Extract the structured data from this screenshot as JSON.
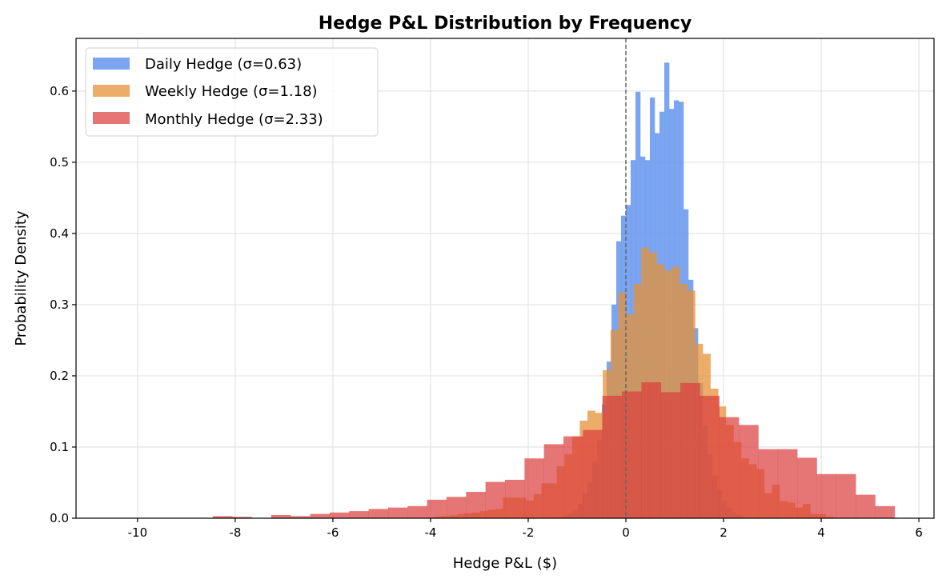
{
  "chart_data": {
    "type": "histogram",
    "title": "Hedge P&L Distribution by Frequency",
    "xlabel": "Hedge P&L ($)",
    "ylabel": "Probability Density",
    "xlim": [
      -11.26,
      6.31
    ],
    "ylim": [
      0,
      0.674
    ],
    "xticks": [
      -10,
      -8,
      -6,
      -4,
      -2,
      0,
      2,
      4,
      6
    ],
    "xtick_labels": [
      "-10",
      "-8",
      "-6",
      "-4",
      "-2",
      "0",
      "2",
      "4",
      "6"
    ],
    "yticks": [
      0,
      0.1,
      0.2,
      0.3,
      0.4,
      0.5,
      0.6
    ],
    "ytick_labels": [
      "0.0",
      "0.1",
      "0.2",
      "0.3",
      "0.4",
      "0.5",
      "0.6"
    ],
    "grid": true,
    "legend_position": "top-left",
    "reference_line": {
      "x": 0,
      "style": "dashed",
      "color": "#666666"
    },
    "series": [
      {
        "name": "Daily Hedge (σ=0.63)",
        "color": "#6495ED",
        "alpha": 0.85,
        "bin_start": -1.378,
        "bin_width": 0.0984,
        "values": [
          0.002,
          0.004,
          0.007,
          0.012,
          0.02,
          0.035,
          0.05,
          0.08,
          0.11,
          0.16,
          0.22,
          0.3,
          0.389,
          0.425,
          0.44,
          0.503,
          0.599,
          0.508,
          0.503,
          0.591,
          0.541,
          0.571,
          0.64,
          0.575,
          0.587,
          0.585,
          0.434,
          0.335,
          0.267,
          0.19,
          0.13,
          0.09,
          0.06,
          0.04,
          0.025,
          0.015,
          0.008,
          0.004
        ]
      },
      {
        "name": "Weekly Hedge (σ=1.18)",
        "color": "#E69138",
        "alpha": 0.75,
        "bin_start": -4.092,
        "bin_width": 0.1574,
        "values": [
          0.001,
          0.002,
          0.003,
          0.004,
          0.006,
          0.007,
          0.008,
          0.01,
          0.012,
          0.013,
          0.029,
          0.029,
          0.029,
          0.025,
          0.034,
          0.049,
          0.049,
          0.073,
          0.09,
          0.115,
          0.137,
          0.151,
          0.148,
          0.208,
          0.264,
          0.317,
          0.286,
          0.329,
          0.38,
          0.373,
          0.357,
          0.348,
          0.353,
          0.329,
          0.32,
          0.245,
          0.231,
          0.182,
          0.157,
          0.131,
          0.107,
          0.084,
          0.076,
          0.069,
          0.035,
          0.047,
          0.024,
          0.022,
          0.015,
          0.02,
          0.006,
          0.006,
          0.002
        ]
      },
      {
        "name": "Monthly Hedge (σ=2.33)",
        "color": "#DC3C3C",
        "alpha": 0.7,
        "bin_start": -8.46,
        "bin_width": 0.399,
        "values": [
          0.003,
          0.002,
          0,
          0.0045,
          0.003,
          0.006,
          0.008,
          0.01,
          0.013,
          0.015,
          0.017,
          0.026,
          0.03,
          0.037,
          0.051,
          0.054,
          0.084,
          0.104,
          0.115,
          0.124,
          0.172,
          0.178,
          0.191,
          0.177,
          0.19,
          0.172,
          0.142,
          0.131,
          0.097,
          0.097,
          0.085,
          0.062,
          0.062,
          0.033,
          0.017
        ]
      }
    ]
  }
}
